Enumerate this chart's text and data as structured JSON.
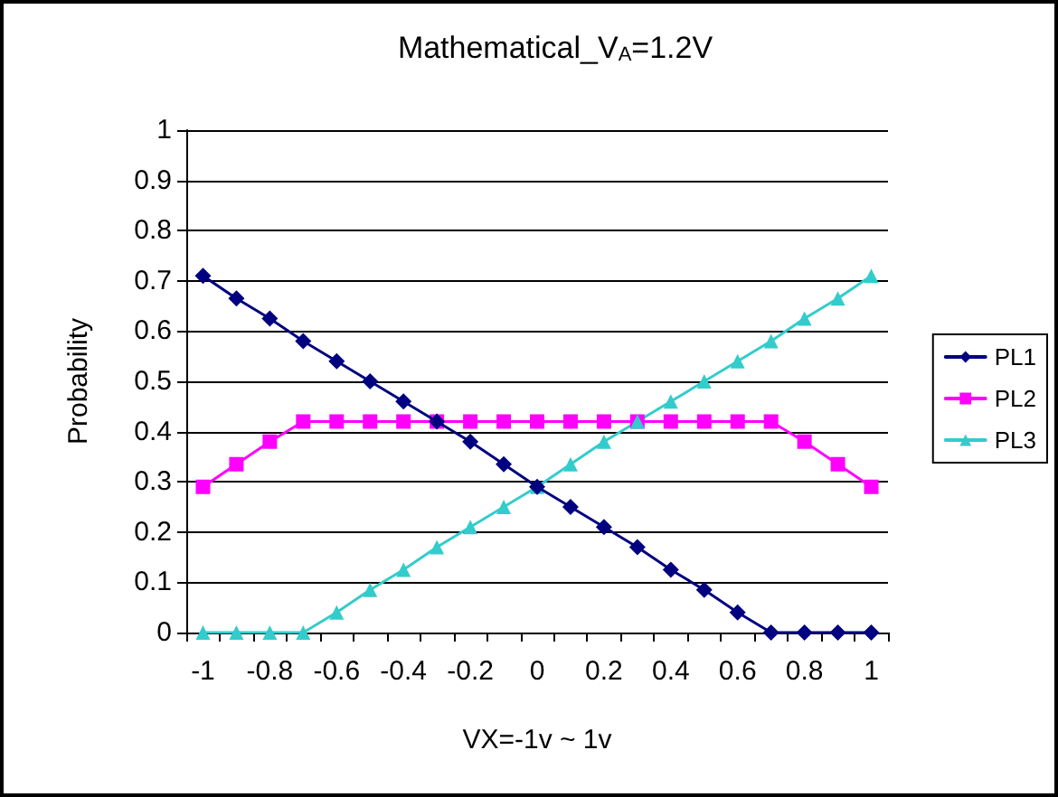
{
  "chart_data": {
    "type": "line",
    "title": "Mathematical_V$_{A}$=1.2V",
    "xlabel": "VX=-1v ~ 1v",
    "ylabel": "Probability",
    "categories": [
      "-1",
      null,
      "-0.8",
      null,
      "-0.6",
      null,
      "-0.4",
      null,
      "-0.2",
      null,
      "0",
      null,
      "0.2",
      null,
      "0.4",
      null,
      "0.6",
      null,
      "0.8",
      null,
      "1"
    ],
    "series": [
      {
        "name": "PL1",
        "color": "#000080",
        "marker": "diamond",
        "values": [
          0.71,
          0.665,
          0.625,
          0.58,
          0.54,
          0.5,
          0.46,
          0.42,
          0.38,
          0.335,
          0.29,
          0.25,
          0.21,
          0.17,
          0.125,
          0.085,
          0.04,
          0,
          0,
          0,
          0
        ]
      },
      {
        "name": "PL2",
        "color": "#ff00ff",
        "marker": "square",
        "values": [
          0.29,
          0.335,
          0.38,
          0.42,
          0.42,
          0.42,
          0.42,
          0.42,
          0.42,
          0.42,
          0.42,
          0.42,
          0.42,
          0.42,
          0.42,
          0.42,
          0.42,
          0.42,
          0.38,
          0.335,
          0.29
        ]
      },
      {
        "name": "PL3",
        "color": "#33cccc",
        "marker": "triangle",
        "values": [
          0,
          0,
          0,
          0,
          0.04,
          0.085,
          0.125,
          0.17,
          0.21,
          0.25,
          0.29,
          0.335,
          0.38,
          0.42,
          0.46,
          0.5,
          0.54,
          0.58,
          0.625,
          0.665,
          0.71
        ]
      }
    ],
    "ylim": [
      0,
      1
    ],
    "yticks": [
      0,
      0.1,
      0.2,
      0.3,
      0.4,
      0.5,
      0.6,
      0.7,
      0.8,
      0.9,
      1
    ],
    "grid": "y",
    "legend": "right",
    "line_style": "solid"
  }
}
